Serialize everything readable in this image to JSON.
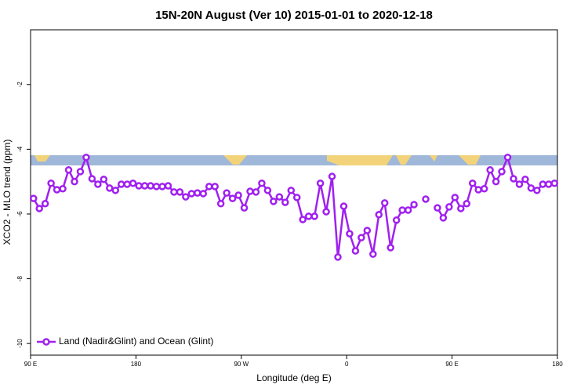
{
  "chart_data": {
    "type": "line",
    "title": "15N-20N August (Ver 10)   2015-01-01 to 2020-12-18",
    "x_label": "Longitude (deg E)",
    "y_label": "XCO2 - MLO trend (ppm)",
    "xlim": [
      90,
      540
    ],
    "ylim": [
      -10.36,
      -0.31
    ],
    "xticks": [
      {
        "value": 90,
        "label": "90 E"
      },
      180,
      {
        "value": 270,
        "label": "90 W"
      },
      {
        "value": 360,
        "label": "0"
      },
      {
        "value": 450,
        "label": "90 E"
      },
      180
    ],
    "yticks": [
      -2,
      -4,
      -6,
      -8,
      -10
    ],
    "legend": "bottom-left",
    "x": [
      92.5,
      97.5,
      102.5,
      107.5,
      112.5,
      117.5,
      122.5,
      127.5,
      132.5,
      137.5,
      142.5,
      147.5,
      152.5,
      157.5,
      162.5,
      167.5,
      172.5,
      177.5,
      182.5,
      187.5,
      192.5,
      197.5,
      202.5,
      207.5,
      212.5,
      217.5,
      222.5,
      227.5,
      232.5,
      237.5,
      242.5,
      247.5,
      252.5,
      257.5,
      262.5,
      267.5,
      272.5,
      277.5,
      282.5,
      287.5,
      292.5,
      297.5,
      302.5,
      307.5,
      312.5,
      317.5,
      322.5,
      327.5,
      332.5,
      337.5,
      342.5,
      347.5,
      352.5,
      357.5,
      362.5,
      367.5,
      372.5,
      377.5,
      382.5,
      387.5,
      392.5,
      397.5,
      402.5,
      407.5,
      412.5,
      417.5,
      422.5,
      427.5,
      432.5,
      437.5,
      442.5,
      447.5,
      452.5,
      457.5,
      462.5,
      467.5,
      472.5,
      477.5,
      482.5,
      487.5,
      492.5,
      497.5,
      502.5,
      507.5,
      512.5,
      517.5,
      522.5,
      527.5,
      532.5,
      537.5
    ],
    "series": [
      {
        "name": "Land (Nadir&Glint) and Ocean (Glint)",
        "color": "#a020f0",
        "values": [
          -5.52,
          -5.83,
          -5.68,
          -5.05,
          -5.25,
          -5.22,
          -4.64,
          -5.0,
          -4.69,
          -4.25,
          -4.91,
          -5.08,
          -4.93,
          -5.2,
          -5.27,
          -5.08,
          -5.08,
          -5.05,
          -5.13,
          -5.13,
          -5.13,
          -5.15,
          -5.15,
          -5.13,
          -5.32,
          -5.32,
          -5.47,
          -5.37,
          -5.35,
          -5.37,
          -5.15,
          -5.15,
          -5.68,
          -5.35,
          -5.52,
          -5.42,
          -5.81,
          -5.3,
          -5.32,
          -5.05,
          -5.27,
          -5.61,
          -5.47,
          -5.64,
          -5.27,
          -5.49,
          -6.17,
          -6.07,
          -6.07,
          -5.05,
          -5.93,
          -4.84,
          -7.33,
          -5.76,
          -6.61,
          -7.14,
          -6.73,
          -6.51,
          -7.24,
          -6.02,
          -5.66,
          -7.04,
          -6.19,
          -5.88,
          -5.88,
          -5.71,
          null,
          -5.54,
          null,
          -5.81,
          -6.12,
          -5.78,
          -5.49,
          -5.83,
          -5.68,
          -5.05,
          -5.25,
          -5.22,
          -4.64,
          -5.0,
          -4.69,
          -4.25,
          -4.91,
          -5.08,
          -4.93,
          -5.2,
          -5.27,
          -5.08,
          -5.08,
          -5.05
        ]
      }
    ]
  }
}
